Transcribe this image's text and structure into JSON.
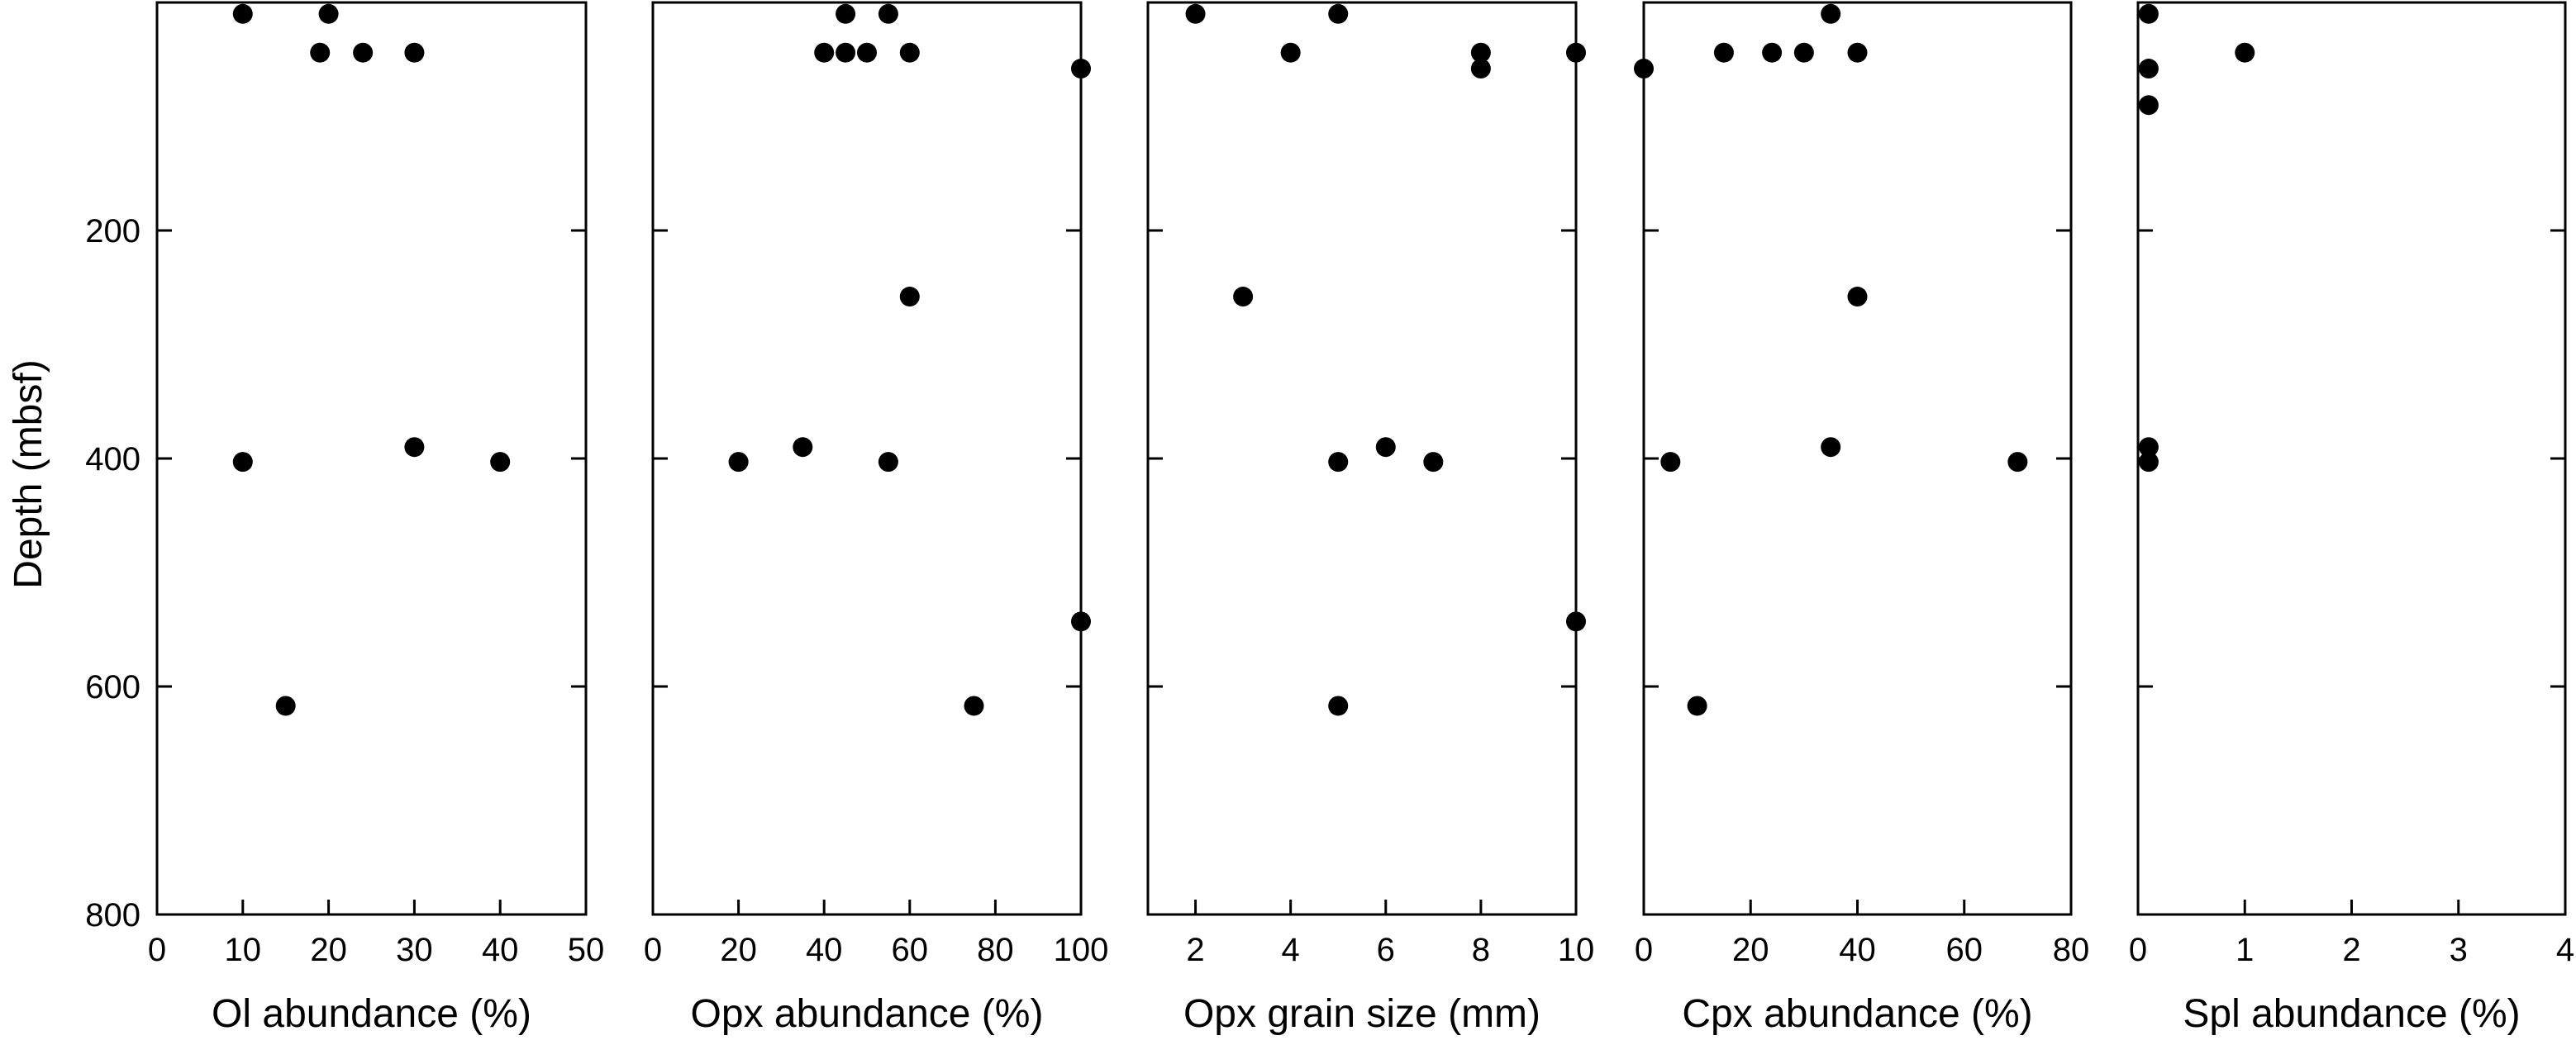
{
  "y_axis": {
    "label": "Depth (mbsf)",
    "range": [
      0,
      800
    ],
    "ticks": [
      200,
      400,
      600,
      800
    ],
    "inverted": true
  },
  "chart_data": [
    {
      "type": "scatter",
      "xlabel": "Ol abundance (%)",
      "xlim": [
        0,
        50
      ],
      "xticks": [
        0,
        10,
        20,
        30,
        40,
        50
      ],
      "points": [
        {
          "x": 10,
          "y": 10
        },
        {
          "x": 20,
          "y": 10
        },
        {
          "x": 19,
          "y": 44
        },
        {
          "x": 24,
          "y": 44
        },
        {
          "x": 30,
          "y": 44
        },
        {
          "x": 30,
          "y": 390
        },
        {
          "x": 10,
          "y": 403
        },
        {
          "x": 40,
          "y": 403
        },
        {
          "x": 15,
          "y": 617
        }
      ]
    },
    {
      "type": "scatter",
      "xlabel": "Opx abundance (%)",
      "xlim": [
        0,
        100
      ],
      "xticks": [
        0,
        20,
        40,
        60,
        80,
        100
      ],
      "points": [
        {
          "x": 45,
          "y": 10
        },
        {
          "x": 55,
          "y": 10
        },
        {
          "x": 40,
          "y": 44
        },
        {
          "x": 45,
          "y": 44
        },
        {
          "x": 50,
          "y": 44
        },
        {
          "x": 60,
          "y": 44
        },
        {
          "x": 100,
          "y": 58
        },
        {
          "x": 60,
          "y": 258
        },
        {
          "x": 35,
          "y": 390
        },
        {
          "x": 20,
          "y": 403
        },
        {
          "x": 55,
          "y": 403
        },
        {
          "x": 100,
          "y": 543
        },
        {
          "x": 75,
          "y": 617
        }
      ]
    },
    {
      "type": "scatter",
      "xlabel": "Opx grain size (mm)",
      "xlim": [
        1,
        10
      ],
      "xticks": [
        2,
        4,
        6,
        8,
        10
      ],
      "points": [
        {
          "x": 2,
          "y": 10
        },
        {
          "x": 5,
          "y": 10
        },
        {
          "x": 4,
          "y": 44
        },
        {
          "x": 8,
          "y": 44
        },
        {
          "x": 10,
          "y": 44
        },
        {
          "x": 8,
          "y": 58
        },
        {
          "x": 3,
          "y": 258
        },
        {
          "x": 6,
          "y": 390
        },
        {
          "x": 5,
          "y": 403
        },
        {
          "x": 7,
          "y": 403
        },
        {
          "x": 10,
          "y": 543
        },
        {
          "x": 5,
          "y": 617
        }
      ]
    },
    {
      "type": "scatter",
      "xlabel": "Cpx abundance (%)",
      "xlim": [
        0,
        80
      ],
      "xticks": [
        0,
        20,
        40,
        60,
        80
      ],
      "points": [
        {
          "x": 35,
          "y": 10
        },
        {
          "x": 15,
          "y": 44
        },
        {
          "x": 24,
          "y": 44
        },
        {
          "x": 30,
          "y": 44
        },
        {
          "x": 40,
          "y": 44
        },
        {
          "x": 0,
          "y": 58
        },
        {
          "x": 40,
          "y": 258
        },
        {
          "x": 35,
          "y": 390
        },
        {
          "x": 5,
          "y": 403
        },
        {
          "x": 70,
          "y": 403
        },
        {
          "x": 10,
          "y": 617
        }
      ]
    },
    {
      "type": "scatter",
      "xlabel": "Spl abundance (%)",
      "xlim": [
        0,
        4
      ],
      "xticks": [
        0,
        1,
        2,
        3,
        4
      ],
      "points": [
        {
          "x": 0.1,
          "y": 10
        },
        {
          "x": 1,
          "y": 44
        },
        {
          "x": 0.1,
          "y": 58
        },
        {
          "x": 0.1,
          "y": 90
        },
        {
          "x": 0.1,
          "y": 390
        },
        {
          "x": 0.1,
          "y": 403
        }
      ]
    }
  ]
}
